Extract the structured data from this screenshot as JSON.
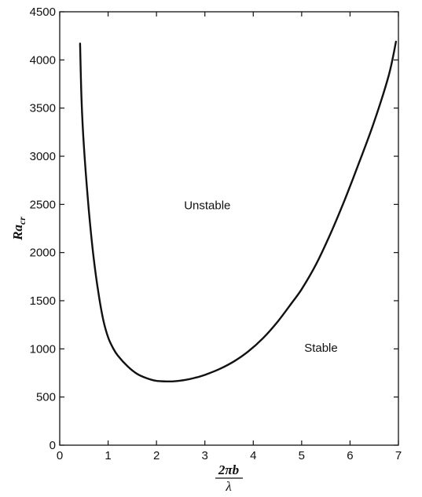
{
  "chart_data": {
    "type": "line",
    "title": "",
    "xlabel": {
      "numerator": "2πb",
      "denominator": "λ"
    },
    "ylabel": {
      "main": "Ra",
      "subscript": "cr"
    },
    "xlim": [
      0,
      7
    ],
    "ylim": [
      0,
      4500
    ],
    "x_ticks": [
      0,
      1,
      2,
      3,
      4,
      5,
      6,
      7
    ],
    "y_ticks": [
      0,
      500,
      1000,
      1500,
      2000,
      2500,
      3000,
      3500,
      4000,
      4500
    ],
    "grid": false,
    "legend": "none",
    "line_color": "#111111",
    "series": [
      {
        "x": [
          0.42,
          0.45,
          0.5,
          0.6,
          0.7,
          0.8,
          0.9,
          1.0,
          1.1,
          1.2,
          1.4,
          1.6,
          1.8,
          2.0,
          2.2,
          2.4,
          2.6,
          2.8,
          3.0,
          3.3,
          3.6,
          3.9,
          4.2,
          4.5,
          4.8,
          5.0,
          5.3,
          5.6,
          5.9,
          6.2,
          6.5,
          6.8,
          6.95
        ],
        "y": [
          4170,
          3600,
          3100,
          2450,
          1950,
          1580,
          1300,
          1120,
          1010,
          930,
          820,
          740,
          695,
          668,
          662,
          665,
          678,
          700,
          730,
          790,
          870,
          975,
          1110,
          1280,
          1480,
          1620,
          1880,
          2200,
          2560,
          2950,
          3360,
          3840,
          4190
        ]
      }
    ],
    "annotations": [
      {
        "text": "Unstable",
        "x": 3.05,
        "y": 2450
      },
      {
        "text": "Stable",
        "x": 5.4,
        "y": 970
      }
    ]
  }
}
